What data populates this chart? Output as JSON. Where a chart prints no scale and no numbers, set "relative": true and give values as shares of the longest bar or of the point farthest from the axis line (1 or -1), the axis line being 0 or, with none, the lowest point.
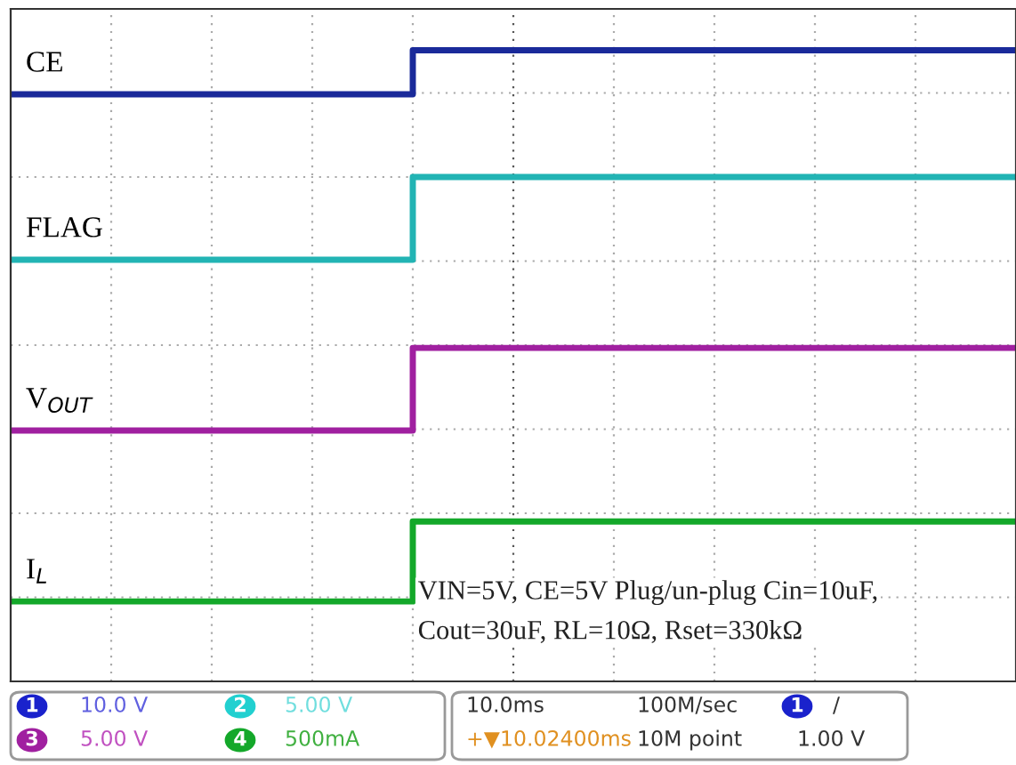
{
  "chart_data": {
    "type": "step",
    "relative": true,
    "grid": true,
    "legend": false,
    "categories": [
      null,
      null,
      null,
      null,
      null,
      null,
      null,
      null,
      null,
      null,
      null
    ],
    "series": [
      {
        "name": "CE",
        "color": "#1a2a9a",
        "values": [
          0.92,
          0.92,
          0.92,
          0.92,
          1,
          1,
          1,
          1,
          1,
          1,
          1
        ]
      },
      {
        "name": "FLAG",
        "color": "#22b4b4",
        "values": [
          0.62,
          0.62,
          0.62,
          0.62,
          0.77,
          0.77,
          0.77,
          0.77,
          0.77,
          0.77,
          0.77
        ]
      },
      {
        "name": "V$_{OUT}$",
        "color": "#a020a0",
        "values": [
          0.31,
          0.31,
          0.31,
          0.31,
          0.46,
          0.46,
          0.46,
          0.46,
          0.46,
          0.46,
          0.46
        ]
      },
      {
        "name": "I$_{L}$",
        "color": "#14a82a",
        "values": [
          0,
          0,
          0,
          0,
          0.145,
          0.145,
          0.145,
          0.145,
          0.145,
          0.145,
          0.145
        ]
      }
    ],
    "annotations": [
      "VIN=5V, CE=5V Plug/un-plug Cin=10uF,\nCout=30uF, RL=10Ω, Rset=330kΩ",
      "1",
      "10.0 V",
      "2",
      "5.00 V",
      "3",
      "5.00 V",
      "4",
      "500mA",
      "10.0ms",
      "100M/sec",
      "1",
      "/",
      "+▼10.02400ms",
      "10M point",
      "1.00 V"
    ]
  }
}
